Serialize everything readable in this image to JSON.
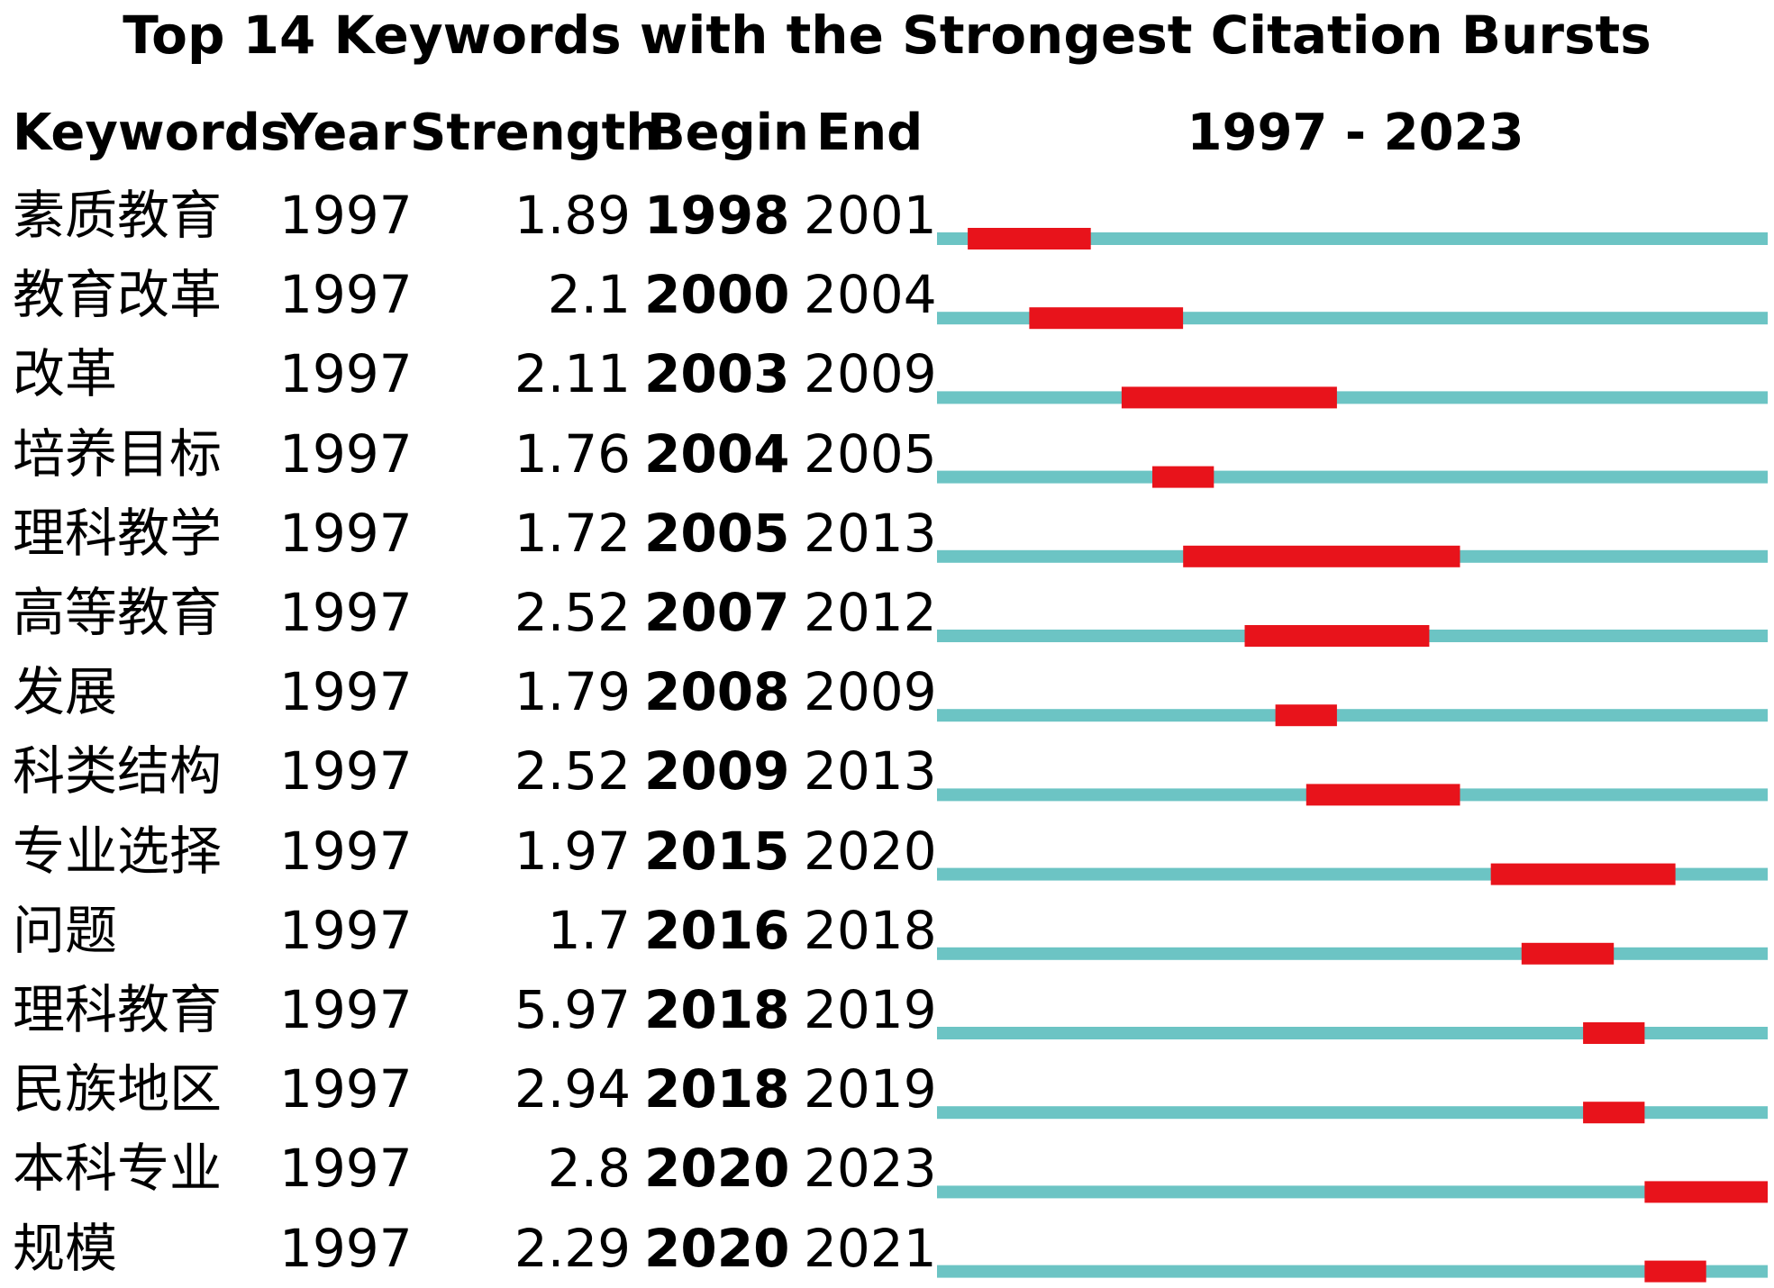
{
  "chart_data": {
    "type": "table",
    "title": "Top 14 Keywords with the Strongest Citation Bursts",
    "columns": [
      "Keywords",
      "Year",
      "Strength",
      "Begin",
      "End"
    ],
    "range_label": "1997 - 2023",
    "range": [
      1997,
      2023
    ],
    "colors": {
      "timeline": "#6cc4c4",
      "burst": "#e8131b"
    },
    "rows": [
      {
        "keyword": "素质教育",
        "year": "1997",
        "strength": "1.89",
        "begin": "1998",
        "end": "2001"
      },
      {
        "keyword": "教育改革",
        "year": "1997",
        "strength": "2.1",
        "begin": "2000",
        "end": "2004"
      },
      {
        "keyword": "改革",
        "year": "1997",
        "strength": "2.11",
        "begin": "2003",
        "end": "2009"
      },
      {
        "keyword": "培养目标",
        "year": "1997",
        "strength": "1.76",
        "begin": "2004",
        "end": "2005"
      },
      {
        "keyword": "理科教学",
        "year": "1997",
        "strength": "1.72",
        "begin": "2005",
        "end": "2013"
      },
      {
        "keyword": "高等教育",
        "year": "1997",
        "strength": "2.52",
        "begin": "2007",
        "end": "2012"
      },
      {
        "keyword": "发展",
        "year": "1997",
        "strength": "1.79",
        "begin": "2008",
        "end": "2009"
      },
      {
        "keyword": "科类结构",
        "year": "1997",
        "strength": "2.52",
        "begin": "2009",
        "end": "2013"
      },
      {
        "keyword": "专业选择",
        "year": "1997",
        "strength": "1.97",
        "begin": "2015",
        "end": "2020"
      },
      {
        "keyword": "问题",
        "year": "1997",
        "strength": "1.7",
        "begin": "2016",
        "end": "2018"
      },
      {
        "keyword": "理科教育",
        "year": "1997",
        "strength": "5.97",
        "begin": "2018",
        "end": "2019"
      },
      {
        "keyword": "民族地区",
        "year": "1997",
        "strength": "2.94",
        "begin": "2018",
        "end": "2019"
      },
      {
        "keyword": "本科专业",
        "year": "1997",
        "strength": "2.8",
        "begin": "2020",
        "end": "2023"
      },
      {
        "keyword": "规模",
        "year": "1997",
        "strength": "2.29",
        "begin": "2020",
        "end": "2021"
      }
    ]
  }
}
